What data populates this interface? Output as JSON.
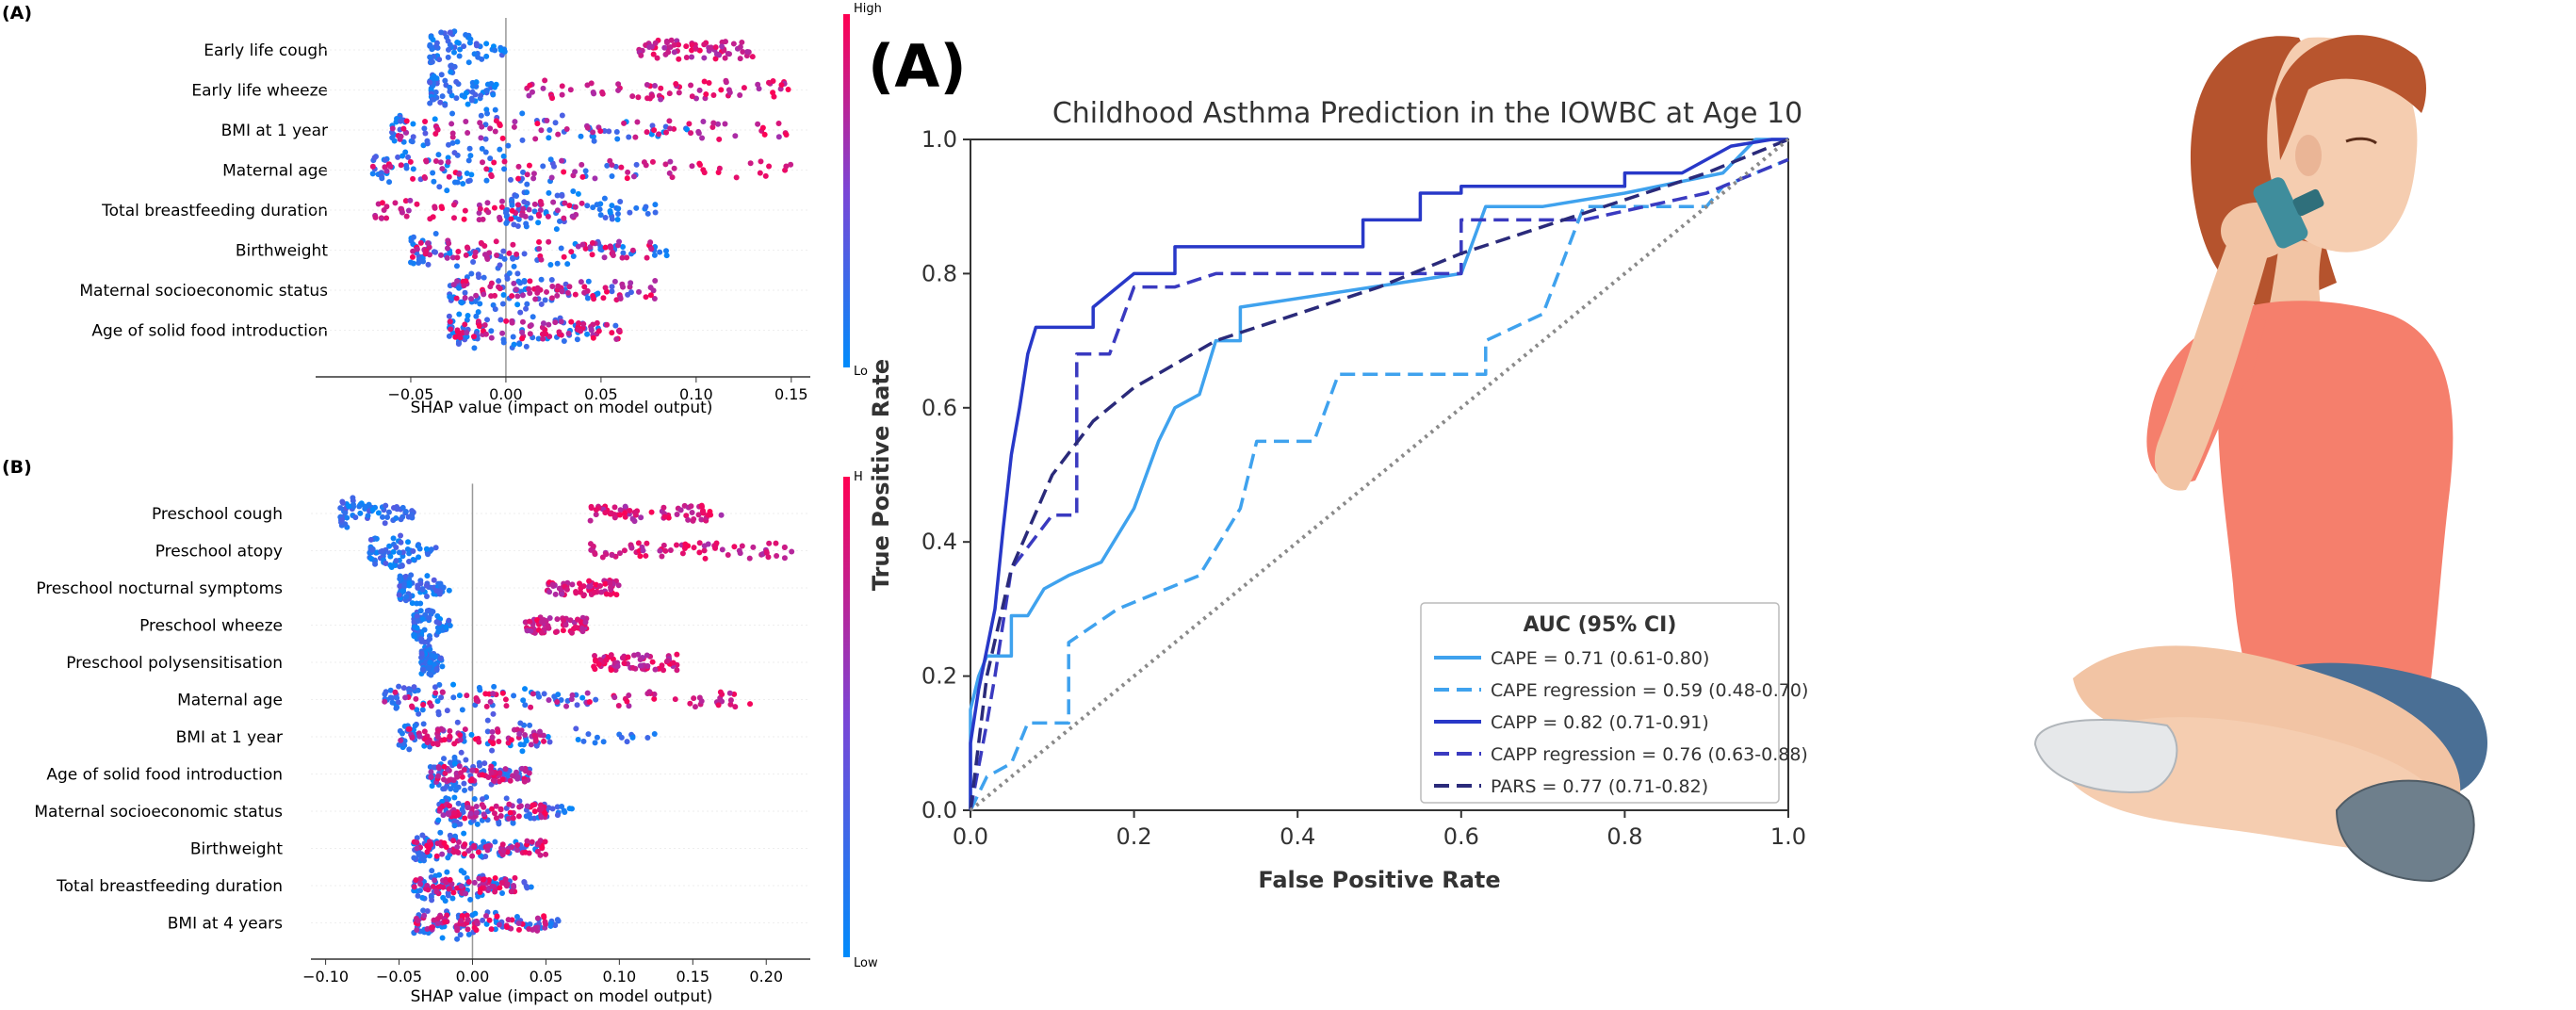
{
  "colorbar": {
    "high_color": "#ff0052",
    "low_color": "#008bfb"
  },
  "chart_data": [
    {
      "type": "scatter",
      "subtype": "shap_beeswarm",
      "panel_label": "(A)",
      "xlabel": "SHAP value (impact on model output)",
      "xlim": [
        -0.1,
        0.16
      ],
      "xticks": [
        -0.05,
        0.0,
        0.05,
        0.1,
        0.15
      ],
      "xtick_labels": [
        "−0.05",
        "0.00",
        "0.05",
        "0.10",
        "0.15"
      ],
      "colorbar_labels": {
        "high": "High",
        "low": "Lo"
      },
      "features": [
        {
          "name": "Early life cough",
          "low_range": [
            -0.04,
            0.0
          ],
          "high_range": [
            0.07,
            0.13
          ]
        },
        {
          "name": "Early life wheeze",
          "low_range": [
            -0.04,
            -0.005
          ],
          "high_range": [
            0.01,
            0.15
          ]
        },
        {
          "name": "BMI at 1 year",
          "low_range": [
            -0.06,
            0.1
          ],
          "high_range": [
            -0.06,
            0.15
          ]
        },
        {
          "name": "Maternal age",
          "low_range": [
            -0.07,
            0.07
          ],
          "high_range": [
            -0.07,
            0.15
          ]
        },
        {
          "name": "Total breastfeeding duration",
          "low_range": [
            0.0,
            0.08
          ],
          "high_range": [
            -0.07,
            0.04
          ]
        },
        {
          "name": "Birthweight",
          "low_range": [
            -0.05,
            0.09
          ],
          "high_range": [
            -0.05,
            0.08
          ]
        },
        {
          "name": "Maternal socioeconomic status",
          "low_range": [
            -0.03,
            0.07
          ],
          "high_range": [
            -0.03,
            0.08
          ]
        },
        {
          "name": "Age of solid food introduction",
          "low_range": [
            -0.03,
            0.06
          ],
          "high_range": [
            -0.03,
            0.06
          ]
        }
      ]
    },
    {
      "type": "scatter",
      "subtype": "shap_beeswarm",
      "panel_label": "(B)",
      "xlabel": "SHAP value (impact on model output)",
      "xlim": [
        -0.11,
        0.23
      ],
      "xticks": [
        -0.1,
        -0.05,
        0.0,
        0.05,
        0.1,
        0.15,
        0.2
      ],
      "xtick_labels": [
        "−0.10",
        "−0.05",
        "0.00",
        "0.05",
        "0.10",
        "0.15",
        "0.20"
      ],
      "colorbar_labels": {
        "high": "H",
        "low": "Low"
      },
      "features": [
        {
          "name": "Preschool cough",
          "low_range": [
            -0.09,
            -0.04
          ],
          "high_range": [
            0.08,
            0.17
          ]
        },
        {
          "name": "Preschool atopy",
          "low_range": [
            -0.07,
            -0.02
          ],
          "high_range": [
            0.08,
            0.22
          ]
        },
        {
          "name": "Preschool nocturnal symptoms",
          "low_range": [
            -0.05,
            -0.015
          ],
          "high_range": [
            0.05,
            0.1
          ]
        },
        {
          "name": "Preschool wheeze",
          "low_range": [
            -0.04,
            -0.015
          ],
          "high_range": [
            0.035,
            0.08
          ]
        },
        {
          "name": "Preschool polysensitisation",
          "low_range": [
            -0.035,
            -0.02
          ],
          "high_range": [
            0.08,
            0.14
          ]
        },
        {
          "name": "Maternal age",
          "low_range": [
            -0.06,
            0.1
          ],
          "high_range": [
            -0.06,
            0.19
          ]
        },
        {
          "name": "BMI at 1 year",
          "low_range": [
            -0.05,
            0.13
          ],
          "high_range": [
            -0.05,
            0.05
          ]
        },
        {
          "name": "Age of solid food introduction",
          "low_range": [
            -0.03,
            0.04
          ],
          "high_range": [
            -0.03,
            0.04
          ]
        },
        {
          "name": "Maternal socioeconomic status",
          "low_range": [
            -0.025,
            0.07
          ],
          "high_range": [
            -0.025,
            0.05
          ]
        },
        {
          "name": "Birthweight",
          "low_range": [
            -0.04,
            0.05
          ],
          "high_range": [
            -0.04,
            0.05
          ]
        },
        {
          "name": "Total breastfeeding duration",
          "low_range": [
            -0.04,
            0.04
          ],
          "high_range": [
            -0.04,
            0.03
          ]
        },
        {
          "name": "BMI at 4 years",
          "low_range": [
            -0.04,
            0.06
          ],
          "high_range": [
            -0.04,
            0.05
          ]
        }
      ]
    },
    {
      "type": "line",
      "panel_label": "(A)",
      "title": "Childhood Asthma Prediction in the IOWBC at Age 10",
      "xlabel": "False Positive Rate",
      "ylabel": "True Positive Rate",
      "xlim": [
        0,
        1
      ],
      "ylim": [
        0,
        1
      ],
      "xticks": [
        0.0,
        0.2,
        0.4,
        0.6,
        0.8,
        1.0
      ],
      "yticks": [
        0.0,
        0.2,
        0.4,
        0.6,
        0.8,
        1.0
      ],
      "xtick_labels": [
        "0.0",
        "0.2",
        "0.4",
        "0.6",
        "0.8",
        "1.0"
      ],
      "ytick_labels": [
        "0.0",
        "0.2",
        "0.4",
        "0.6",
        "0.8",
        "1.0"
      ],
      "legend_title": "AUC (95% CI)",
      "legend_position": "lower right",
      "series": [
        {
          "name": "CAPE = 0.71 (0.61-0.80)",
          "color": "#3fa2ee",
          "dash": "solid",
          "points": [
            [
              0,
              0
            ],
            [
              0,
              0.15
            ],
            [
              0.01,
              0.2
            ],
            [
              0.02,
              0.23
            ],
            [
              0.05,
              0.23
            ],
            [
              0.05,
              0.29
            ],
            [
              0.07,
              0.29
            ],
            [
              0.09,
              0.33
            ],
            [
              0.12,
              0.35
            ],
            [
              0.16,
              0.37
            ],
            [
              0.2,
              0.45
            ],
            [
              0.23,
              0.55
            ],
            [
              0.25,
              0.6
            ],
            [
              0.28,
              0.62
            ],
            [
              0.3,
              0.7
            ],
            [
              0.33,
              0.7
            ],
            [
              0.33,
              0.75
            ],
            [
              0.6,
              0.8
            ],
            [
              0.63,
              0.9
            ],
            [
              0.7,
              0.9
            ],
            [
              0.8,
              0.92
            ],
            [
              0.92,
              0.95
            ],
            [
              0.96,
              1.0
            ],
            [
              1.0,
              1.0
            ]
          ]
        },
        {
          "name": "CAPE regression = 0.59 (0.48-0.70)",
          "color": "#3fa2ee",
          "dash": "dashed",
          "points": [
            [
              0,
              0
            ],
            [
              0.02,
              0.05
            ],
            [
              0.05,
              0.07
            ],
            [
              0.07,
              0.13
            ],
            [
              0.12,
              0.13
            ],
            [
              0.12,
              0.25
            ],
            [
              0.18,
              0.3
            ],
            [
              0.28,
              0.35
            ],
            [
              0.33,
              0.45
            ],
            [
              0.35,
              0.55
            ],
            [
              0.42,
              0.55
            ],
            [
              0.45,
              0.65
            ],
            [
              0.63,
              0.65
            ],
            [
              0.63,
              0.7
            ],
            [
              0.7,
              0.74
            ],
            [
              0.75,
              0.9
            ],
            [
              0.9,
              0.9
            ],
            [
              0.92,
              0.93
            ],
            [
              1.0,
              0.97
            ]
          ]
        },
        {
          "name": "CAPP = 0.82 (0.71-0.91)",
          "color": "#2838c8",
          "dash": "solid",
          "points": [
            [
              0,
              0
            ],
            [
              0,
              0.1
            ],
            [
              0.01,
              0.18
            ],
            [
              0.02,
              0.24
            ],
            [
              0.03,
              0.3
            ],
            [
              0.04,
              0.42
            ],
            [
              0.05,
              0.53
            ],
            [
              0.06,
              0.6
            ],
            [
              0.07,
              0.68
            ],
            [
              0.08,
              0.72
            ],
            [
              0.15,
              0.72
            ],
            [
              0.15,
              0.75
            ],
            [
              0.2,
              0.8
            ],
            [
              0.25,
              0.8
            ],
            [
              0.25,
              0.84
            ],
            [
              0.48,
              0.84
            ],
            [
              0.48,
              0.88
            ],
            [
              0.55,
              0.88
            ],
            [
              0.55,
              0.92
            ],
            [
              0.6,
              0.92
            ],
            [
              0.6,
              0.93
            ],
            [
              0.8,
              0.93
            ],
            [
              0.8,
              0.95
            ],
            [
              0.87,
              0.95
            ],
            [
              0.93,
              0.99
            ],
            [
              0.98,
              1.0
            ],
            [
              1.0,
              1.0
            ]
          ]
        },
        {
          "name": "CAPP regression = 0.76 (0.63-0.88)",
          "color": "#3a3ac0",
          "dash": "dashed",
          "points": [
            [
              0,
              0
            ],
            [
              0.02,
              0.13
            ],
            [
              0.03,
              0.2
            ],
            [
              0.05,
              0.36
            ],
            [
              0.1,
              0.44
            ],
            [
              0.13,
              0.44
            ],
            [
              0.13,
              0.68
            ],
            [
              0.17,
              0.68
            ],
            [
              0.2,
              0.78
            ],
            [
              0.25,
              0.78
            ],
            [
              0.3,
              0.8
            ],
            [
              0.48,
              0.8
            ],
            [
              0.6,
              0.8
            ],
            [
              0.6,
              0.88
            ],
            [
              0.75,
              0.88
            ],
            [
              0.9,
              0.92
            ],
            [
              1.0,
              0.97
            ]
          ]
        },
        {
          "name": "PARS = 0.77 (0.71-0.82)",
          "color": "#2a2a7a",
          "dash": "dashed",
          "points": [
            [
              0,
              0
            ],
            [
              0.02,
              0.2
            ],
            [
              0.05,
              0.36
            ],
            [
              0.1,
              0.5
            ],
            [
              0.15,
              0.58
            ],
            [
              0.2,
              0.63
            ],
            [
              0.3,
              0.7
            ],
            [
              0.4,
              0.74
            ],
            [
              0.5,
              0.78
            ],
            [
              0.6,
              0.83
            ],
            [
              0.7,
              0.87
            ],
            [
              0.8,
              0.91
            ],
            [
              0.9,
              0.95
            ],
            [
              1.0,
              1.0
            ]
          ]
        },
        {
          "name": "chance",
          "color": "#8a8a8a",
          "dash": "dotted",
          "points": [
            [
              0,
              0
            ],
            [
              1,
              1
            ]
          ]
        }
      ]
    }
  ]
}
